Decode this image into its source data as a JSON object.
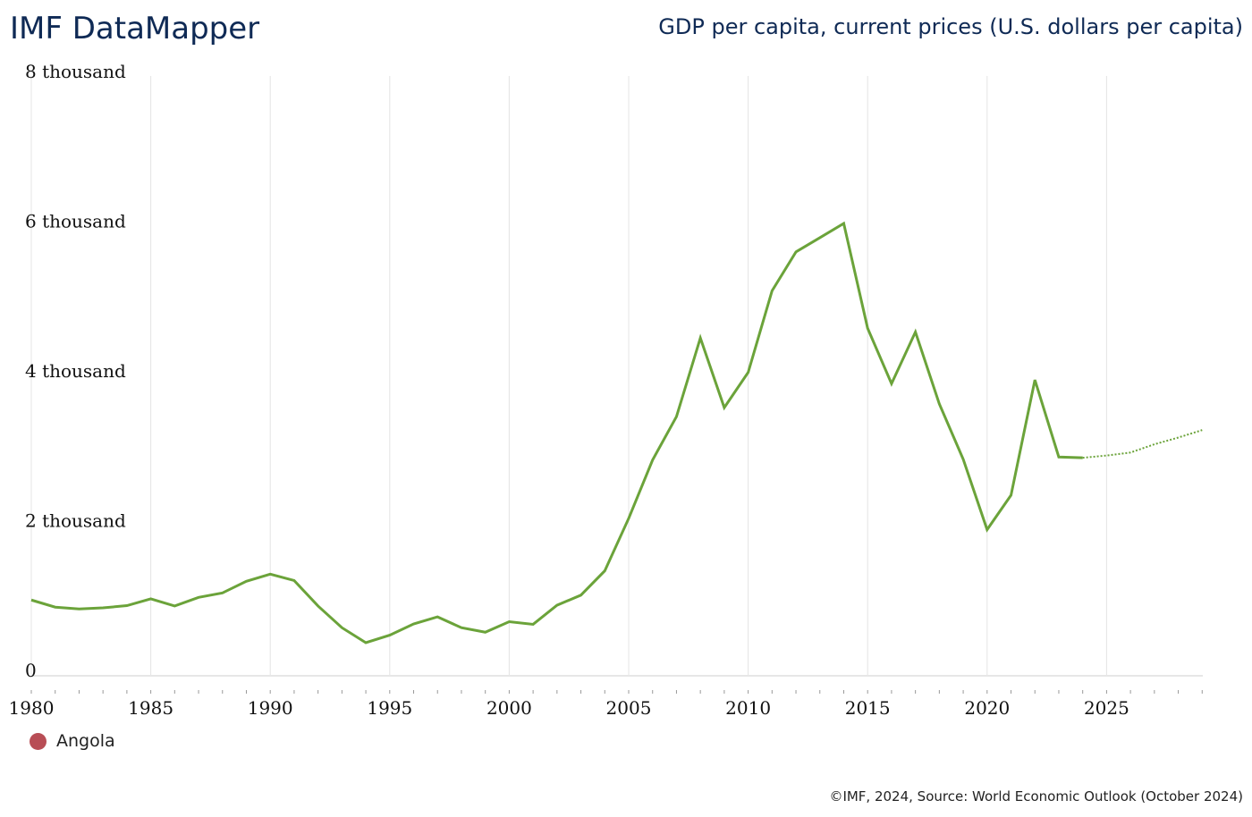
{
  "header": {
    "brand": "IMF DataMapper",
    "title": "GDP per capita, current prices (U.S. dollars per capita)"
  },
  "legend": {
    "items": [
      {
        "label": "Angola",
        "color": "#b84d55"
      }
    ]
  },
  "footer": {
    "source": "©IMF, 2024, Source: World Economic Outlook (October 2024)"
  },
  "colors": {
    "series": "#6ba33a",
    "grid": "#e4e4e4",
    "axis": "#999999"
  },
  "chart_data": {
    "type": "line",
    "title": "GDP per capita, current prices (U.S. dollars per capita)",
    "xlabel": "",
    "ylabel": "",
    "xlim": [
      1980,
      2029
    ],
    "ylim": [
      0,
      8000
    ],
    "grid": true,
    "x_ticks": [
      1980,
      1985,
      1990,
      1995,
      2000,
      2005,
      2010,
      2015,
      2020,
      2025
    ],
    "y_ticks": [
      {
        "value": 0,
        "label": "0"
      },
      {
        "value": 2000,
        "label": "2 thousand"
      },
      {
        "value": 4000,
        "label": "4 thousand"
      },
      {
        "value": 6000,
        "label": "6 thousand"
      },
      {
        "value": 8000,
        "label": "8 thousand"
      }
    ],
    "legend_position": "bottom-left",
    "series": [
      {
        "name": "Angola",
        "projection_start": 2024,
        "x": [
          1980,
          1981,
          1982,
          1983,
          1984,
          1985,
          1986,
          1987,
          1988,
          1989,
          1990,
          1991,
          1992,
          1993,
          1994,
          1995,
          1996,
          1997,
          1998,
          1999,
          2000,
          2001,
          2002,
          2003,
          2004,
          2005,
          2006,
          2007,
          2008,
          2009,
          2010,
          2011,
          2012,
          2013,
          2014,
          2015,
          2016,
          2017,
          2018,
          2019,
          2020,
          2021,
          2022,
          2023,
          2024,
          2025,
          2026,
          2027,
          2028,
          2029
        ],
        "values": [
          1000,
          905,
          880,
          895,
          925,
          1015,
          920,
          1035,
          1095,
          1250,
          1345,
          1260,
          920,
          630,
          430,
          530,
          680,
          775,
          630,
          570,
          710,
          675,
          930,
          1065,
          1390,
          2090,
          2870,
          3450,
          4500,
          3570,
          4040,
          5130,
          5650,
          5840,
          6030,
          4630,
          3890,
          4580,
          3620,
          2880,
          1940,
          2400,
          3940,
          2910,
          2900,
          2930,
          2970,
          3080,
          3170,
          3270
        ]
      }
    ]
  }
}
